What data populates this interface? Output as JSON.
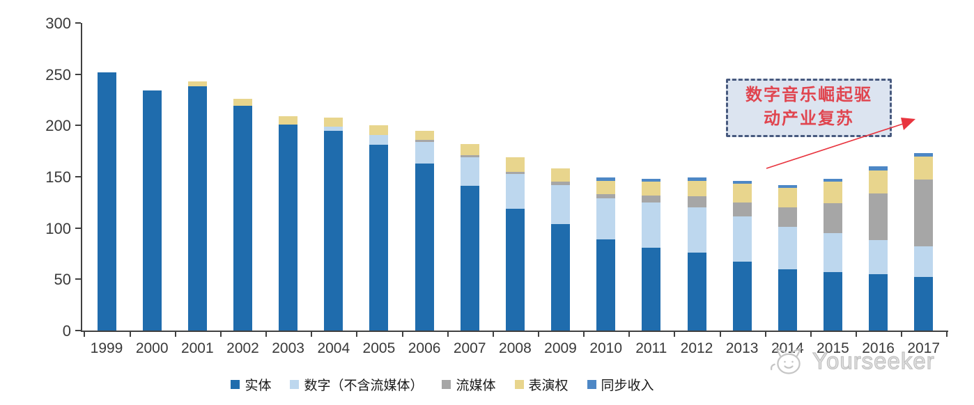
{
  "chart_data": {
    "type": "bar",
    "stacked": true,
    "title": "",
    "categories": [
      "1999",
      "2000",
      "2001",
      "2002",
      "2003",
      "2004",
      "2005",
      "2006",
      "2007",
      "2008",
      "2009",
      "2010",
      "2011",
      "2012",
      "2013",
      "2014",
      "2015",
      "2016",
      "2017"
    ],
    "series": [
      {
        "name": "实体",
        "color": "#1F6CAD",
        "values": [
          252,
          234,
          238,
          219,
          201,
          195,
          181,
          163,
          141,
          119,
          104,
          89,
          81,
          76,
          67,
          60,
          57,
          55,
          52
        ]
      },
      {
        "name": "数字（不含流媒体）",
        "color": "#BDD7EE",
        "values": [
          0,
          0,
          0,
          0,
          0,
          4,
          10,
          21,
          28,
          34,
          38,
          40,
          44,
          44,
          44,
          41,
          38,
          33,
          30
        ]
      },
      {
        "name": "流媒体",
        "color": "#A6A6A6",
        "values": [
          0,
          0,
          0,
          0,
          0,
          0,
          0,
          2,
          2,
          2,
          3,
          4,
          7,
          11,
          14,
          19,
          29,
          46,
          65
        ]
      },
      {
        "name": "表演权",
        "color": "#E8D58D",
        "values": [
          0,
          0,
          5,
          7,
          8,
          9,
          9,
          9,
          11,
          14,
          13,
          13,
          13,
          15,
          18,
          19,
          21,
          22,
          23
        ]
      },
      {
        "name": "同步收入",
        "color": "#4D87C5",
        "values": [
          0,
          0,
          0,
          0,
          0,
          0,
          0,
          0,
          0,
          0,
          0,
          3,
          3,
          3,
          3,
          3,
          3,
          4,
          3
        ]
      }
    ],
    "ylim": [
      0,
      300
    ],
    "yticks": [
      0,
      50,
      100,
      150,
      200,
      250,
      300
    ],
    "grid": false,
    "legend_position": "bottom"
  },
  "annotation": {
    "line1": "数字音乐崛起驱",
    "line2": "动产业复苏",
    "text_color": "#E0454F",
    "border_color": "#47597E",
    "fill_color": "#DCE4F0",
    "arrow_color": "#E8353F"
  },
  "watermark": {
    "text": "Yourseeker",
    "logo": "cat-face-logo",
    "color": "#C9C9C9"
  }
}
